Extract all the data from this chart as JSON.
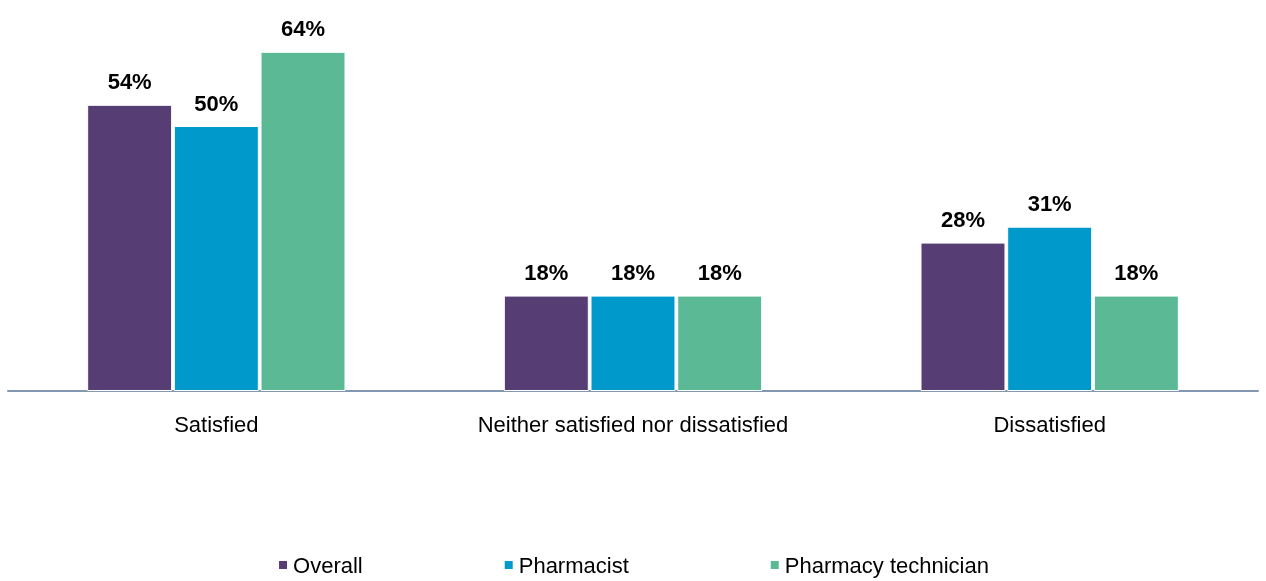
{
  "chart_data": {
    "type": "bar",
    "categories": [
      "Satisfied",
      "Neither satisfied nor dissatisfied",
      "Dissatisfied"
    ],
    "series": [
      {
        "name": "Overall",
        "color": "#563d73",
        "values": [
          54,
          18,
          28
        ],
        "value_labels": [
          "54%",
          "18%",
          "28%"
        ]
      },
      {
        "name": "Pharmacist",
        "color": "#0099cc",
        "values": [
          50,
          18,
          31
        ],
        "value_labels": [
          "50%",
          "18%",
          "31%"
        ]
      },
      {
        "name": "Pharmacy technician",
        "color": "#5bb995",
        "values": [
          64,
          18,
          18
        ],
        "value_labels": [
          "64%",
          "18%",
          "18%"
        ]
      }
    ],
    "legend": "bottom"
  }
}
